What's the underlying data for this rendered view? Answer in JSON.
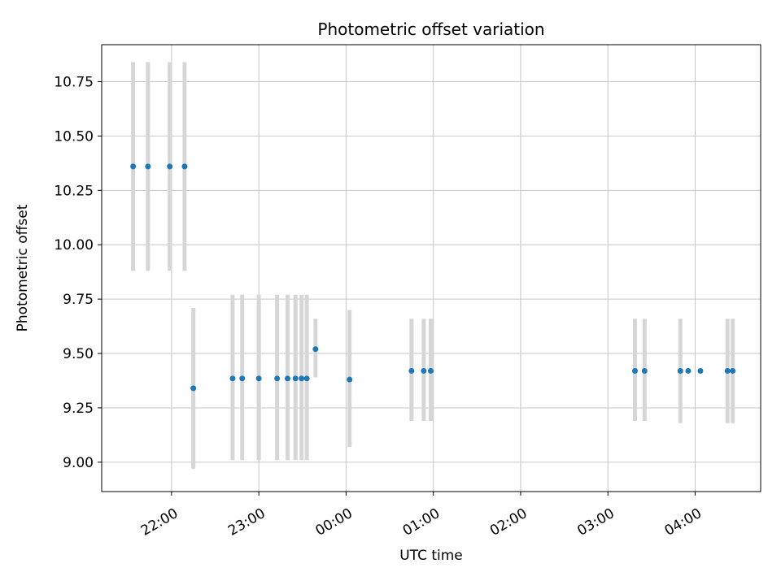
{
  "chart_data": {
    "type": "scatter",
    "title": "Photometric offset variation",
    "xlabel": "UTC time",
    "ylabel": "Photometric offset",
    "grid": true,
    "legend": "none",
    "point_color": "#1f77b4",
    "errorbar_color": "#d6d6d6",
    "grid_color": "#c6c6c6",
    "spine_color": "#000000",
    "xlim": [
      21.2,
      28.75
    ],
    "ylim": [
      8.865,
      10.92
    ],
    "x_ticks": [
      {
        "t": 22,
        "label": "22:00"
      },
      {
        "t": 23,
        "label": "23:00"
      },
      {
        "t": 24,
        "label": "00:00"
      },
      {
        "t": 25,
        "label": "01:00"
      },
      {
        "t": 26,
        "label": "02:00"
      },
      {
        "t": 27,
        "label": "03:00"
      },
      {
        "t": 28,
        "label": "04:00"
      }
    ],
    "y_ticks": [
      {
        "v": 9.0,
        "label": "9.00"
      },
      {
        "v": 9.25,
        "label": "9.25"
      },
      {
        "v": 9.5,
        "label": "9.50"
      },
      {
        "v": 9.75,
        "label": "9.75"
      },
      {
        "v": 10.0,
        "label": "10.00"
      },
      {
        "v": 10.25,
        "label": "10.25"
      },
      {
        "v": 10.5,
        "label": "10.50"
      },
      {
        "v": 10.75,
        "label": "10.75"
      }
    ],
    "points": [
      {
        "t": 21.56,
        "y": 10.36,
        "lo": 9.88,
        "hi": 10.84
      },
      {
        "t": 21.73,
        "y": 10.36,
        "lo": 9.88,
        "hi": 10.84
      },
      {
        "t": 21.98,
        "y": 10.36,
        "lo": 9.88,
        "hi": 10.84
      },
      {
        "t": 22.15,
        "y": 10.36,
        "lo": 9.88,
        "hi": 10.84
      },
      {
        "t": 22.25,
        "y": 9.34,
        "lo": 8.97,
        "hi": 9.71
      },
      {
        "t": 22.7,
        "y": 9.385,
        "lo": 9.01,
        "hi": 9.77
      },
      {
        "t": 22.81,
        "y": 9.385,
        "lo": 9.01,
        "hi": 9.77
      },
      {
        "t": 23.0,
        "y": 9.385,
        "lo": 9.01,
        "hi": 9.77
      },
      {
        "t": 23.21,
        "y": 9.385,
        "lo": 9.01,
        "hi": 9.77
      },
      {
        "t": 23.33,
        "y": 9.385,
        "lo": 9.01,
        "hi": 9.77
      },
      {
        "t": 23.42,
        "y": 9.385,
        "lo": 9.01,
        "hi": 9.77
      },
      {
        "t": 23.49,
        "y": 9.385,
        "lo": 9.01,
        "hi": 9.77
      },
      {
        "t": 23.55,
        "y": 9.385,
        "lo": 9.01,
        "hi": 9.77
      },
      {
        "t": 23.65,
        "y": 9.52,
        "lo": 9.39,
        "hi": 9.66
      },
      {
        "t": 24.04,
        "y": 9.38,
        "lo": 9.07,
        "hi": 9.7
      },
      {
        "t": 24.75,
        "y": 9.42,
        "lo": 9.19,
        "hi": 9.66
      },
      {
        "t": 24.89,
        "y": 9.42,
        "lo": 9.19,
        "hi": 9.66
      },
      {
        "t": 24.97,
        "y": 9.42,
        "lo": 9.19,
        "hi": 9.66
      },
      {
        "t": 27.31,
        "y": 9.42,
        "lo": 9.19,
        "hi": 9.66
      },
      {
        "t": 27.42,
        "y": 9.42,
        "lo": 9.19,
        "hi": 9.66
      },
      {
        "t": 27.83,
        "y": 9.42,
        "lo": 9.18,
        "hi": 9.66
      },
      {
        "t": 27.92,
        "y": 9.42,
        "lo": 9.42,
        "hi": 9.42
      },
      {
        "t": 28.06,
        "y": 9.42,
        "lo": 9.42,
        "hi": 9.42
      },
      {
        "t": 28.37,
        "y": 9.42,
        "lo": 9.18,
        "hi": 9.66
      },
      {
        "t": 28.43,
        "y": 9.42,
        "lo": 9.18,
        "hi": 9.66
      }
    ]
  }
}
